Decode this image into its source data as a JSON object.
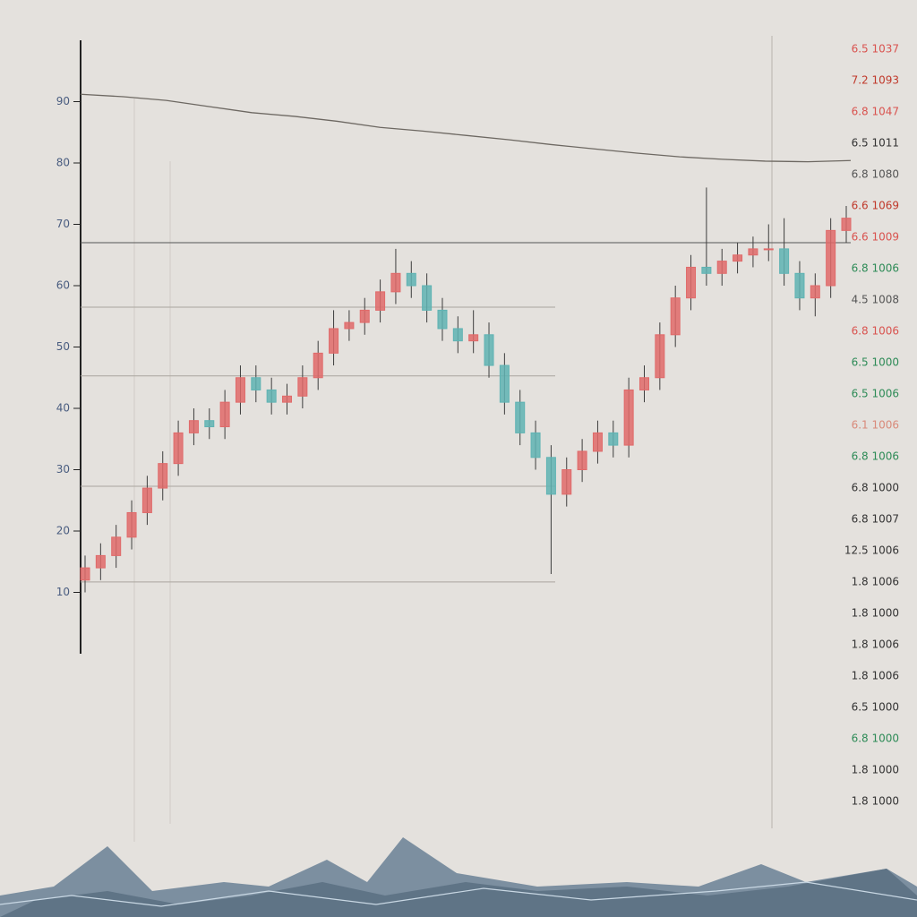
{
  "chart_data": {
    "type": "candlestick",
    "open": [
      12,
      14,
      16,
      19,
      23,
      27,
      31,
      36,
      38,
      37,
      41,
      45,
      43,
      41,
      42,
      45,
      49,
      53,
      54,
      56,
      59,
      62,
      60,
      56,
      53,
      51,
      52,
      47,
      41,
      36,
      32,
      26,
      30,
      33,
      36,
      34,
      43,
      45,
      52,
      58,
      63,
      62,
      64,
      65,
      66,
      66,
      62,
      58,
      60,
      69
    ],
    "close": [
      14,
      16,
      19,
      23,
      27,
      31,
      36,
      38,
      37,
      41,
      45,
      43,
      41,
      42,
      45,
      49,
      53,
      54,
      56,
      59,
      62,
      60,
      56,
      53,
      51,
      52,
      47,
      41,
      36,
      32,
      26,
      30,
      33,
      36,
      34,
      43,
      45,
      52,
      58,
      63,
      62,
      64,
      65,
      66,
      66,
      62,
      58,
      60,
      69,
      71
    ],
    "high": [
      16,
      18,
      21,
      25,
      29,
      33,
      38,
      40,
      40,
      43,
      47,
      47,
      45,
      44,
      47,
      51,
      56,
      56,
      58,
      61,
      66,
      64,
      62,
      58,
      55,
      56,
      54,
      49,
      43,
      38,
      34,
      32,
      35,
      38,
      38,
      45,
      47,
      54,
      60,
      65,
      76,
      66,
      67,
      68,
      70,
      71,
      64,
      62,
      71,
      73
    ],
    "low": [
      10,
      12,
      14,
      17,
      21,
      25,
      29,
      34,
      35,
      35,
      39,
      41,
      39,
      39,
      40,
      43,
      47,
      51,
      52,
      54,
      57,
      58,
      54,
      51,
      49,
      49,
      45,
      39,
      34,
      30,
      13,
      24,
      28,
      31,
      32,
      32,
      41,
      43,
      50,
      56,
      60,
      60,
      62,
      63,
      64,
      60,
      56,
      55,
      58,
      67
    ],
    "up_color": "#e06a6a",
    "down_color": "#5fb3b3",
    "ylim": [
      0,
      100
    ],
    "yticks": [
      10,
      20,
      30,
      40,
      50,
      60,
      70,
      80,
      90
    ],
    "levels": [
      67,
      56.5,
      45.3,
      27.3,
      11.7
    ],
    "trend": [
      91.2,
      90.8,
      90.2,
      89.2,
      88.2,
      87.6,
      86.8,
      85.8,
      85.2,
      84.5,
      83.8,
      83.0,
      82.3,
      81.6,
      81.0,
      80.6,
      80.3,
      80.2,
      80.4
    ],
    "right_labels": [
      {
        "text": "6.5 1037",
        "color": "#d9534f"
      },
      {
        "text": "7.2 1093",
        "color": "#c0392b"
      },
      {
        "text": "6.8 1047",
        "color": "#d9534f"
      },
      {
        "text": "6.5 1011",
        "color": "#333333"
      },
      {
        "text": "6.8 1080",
        "color": "#555555"
      },
      {
        "text": "6.6 1069",
        "color": "#c0392b"
      },
      {
        "text": "6.6 1009",
        "color": "#d9534f"
      },
      {
        "text": "6.8 1006",
        "color": "#2e8b57"
      },
      {
        "text": "4.5 1008",
        "color": "#555555"
      },
      {
        "text": "6.8 1006",
        "color": "#d9534f"
      },
      {
        "text": "6.5 1000",
        "color": "#2e8b57"
      },
      {
        "text": "6.5 1006",
        "color": "#2e8b57"
      },
      {
        "text": "6.1 1006",
        "color": "#d98a7a"
      },
      {
        "text": "6.8 1006",
        "color": "#2e8b57"
      },
      {
        "text": "6.8 1000",
        "color": "#333333"
      },
      {
        "text": "6.8 1007",
        "color": "#333333"
      },
      {
        "text": "12.5 1006",
        "color": "#333333"
      },
      {
        "text": "1.8 1006",
        "color": "#333333"
      },
      {
        "text": "1.8 1000",
        "color": "#333333"
      },
      {
        "text": "1.8 1006",
        "color": "#333333"
      },
      {
        "text": "1.8 1006",
        "color": "#333333"
      },
      {
        "text": "6.5 1000",
        "color": "#333333"
      },
      {
        "text": "6.8 1000",
        "color": "#2e8b57"
      },
      {
        "text": "1.8 1000",
        "color": "#333333"
      },
      {
        "text": "1.8 1000",
        "color": "#333333"
      }
    ]
  }
}
